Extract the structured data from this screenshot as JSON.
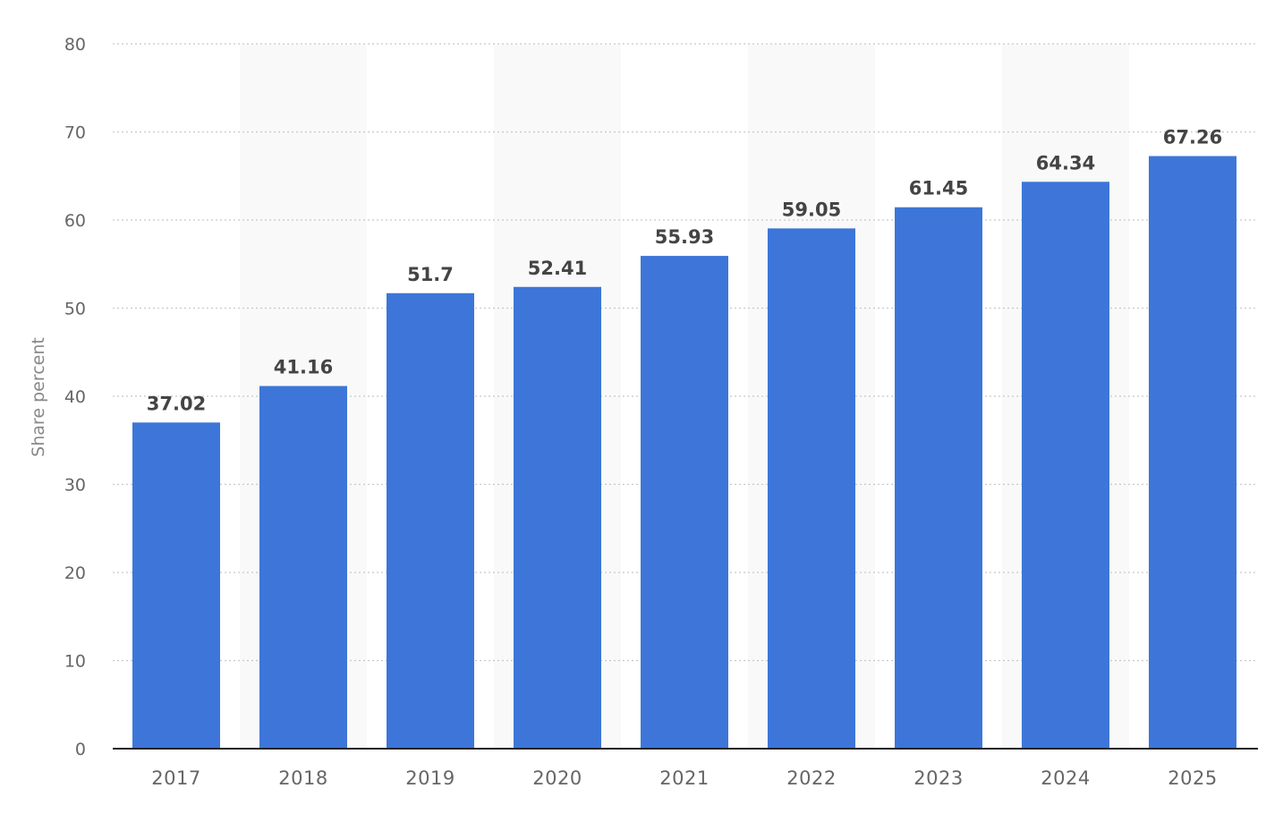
{
  "chart_data": {
    "type": "bar",
    "title": "",
    "xlabel": "",
    "ylabel": "Share percent",
    "categories": [
      "2017",
      "2018",
      "2019",
      "2020",
      "2021",
      "2022",
      "2023",
      "2024",
      "2025"
    ],
    "values": [
      37.02,
      41.16,
      51.7,
      52.41,
      55.93,
      59.05,
      61.45,
      64.34,
      67.26
    ],
    "value_labels": [
      "37.02",
      "41.16",
      "51.7",
      "52.41",
      "55.93",
      "59.05",
      "61.45",
      "64.34",
      "67.26"
    ],
    "ylim": [
      0,
      80
    ],
    "yticks": [
      0,
      10,
      20,
      30,
      40,
      50,
      60,
      70,
      80
    ],
    "grid": "horizontal dotted",
    "legend": "none",
    "colors": {
      "bar": "#3D76D8",
      "alt_band": "#F9F9F9",
      "grid": "#C8C8C8",
      "axis": "#222222",
      "value_label": "#444444",
      "tick_label": "#666666",
      "axis_label": "#888888"
    }
  }
}
